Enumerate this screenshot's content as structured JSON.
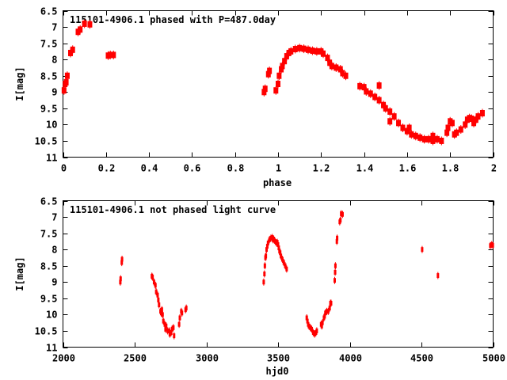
{
  "chart_data": [
    {
      "type": "scatter",
      "title": "115101-4906.1 phased with P=487.0day",
      "xlabel": "phase",
      "ylabel": "I[mag]",
      "xlim": [
        0,
        2
      ],
      "ylim": [
        11,
        6.5
      ],
      "y_inverted": true,
      "xticks": [
        "0",
        "0.2",
        "0.4",
        "0.6",
        "0.8",
        "1",
        "1.2",
        "1.4",
        "1.6",
        "1.8",
        "2"
      ],
      "xtick_values": [
        0,
        0.2,
        0.4,
        0.6,
        0.8,
        1,
        1.2,
        1.4,
        1.6,
        1.8,
        2
      ],
      "yticks": [
        "6.5",
        "7",
        "7.5",
        "8",
        "8.5",
        "9",
        "9.5",
        "10",
        "10.5",
        "11"
      ],
      "ytick_values": [
        6.5,
        7,
        7.5,
        8,
        8.5,
        9,
        9.5,
        10,
        10.5,
        11
      ],
      "grid": false,
      "marker_color": "#ff0000",
      "points": [
        [
          0.005,
          8.95
        ],
        [
          0.01,
          8.75
        ],
        [
          0.015,
          8.7
        ],
        [
          0.02,
          8.5
        ],
        [
          0.035,
          7.8
        ],
        [
          0.045,
          7.7
        ],
        [
          0.07,
          7.15
        ],
        [
          0.08,
          7.08
        ],
        [
          0.1,
          6.9
        ],
        [
          0.125,
          6.92
        ],
        [
          0.21,
          7.88
        ],
        [
          0.22,
          7.86
        ],
        [
          0.235,
          7.86
        ],
        [
          0.935,
          9.0
        ],
        [
          0.94,
          8.9
        ],
        [
          0.955,
          8.45
        ],
        [
          0.96,
          8.35
        ],
        [
          0.99,
          8.95
        ],
        [
          1.0,
          8.75
        ],
        [
          1.005,
          8.5
        ],
        [
          1.015,
          8.3
        ],
        [
          1.02,
          8.2
        ],
        [
          1.03,
          8.05
        ],
        [
          1.04,
          7.9
        ],
        [
          1.05,
          7.8
        ],
        [
          1.06,
          7.75
        ],
        [
          1.08,
          7.68
        ],
        [
          1.1,
          7.65
        ],
        [
          1.12,
          7.67
        ],
        [
          1.14,
          7.7
        ],
        [
          1.16,
          7.73
        ],
        [
          1.18,
          7.75
        ],
        [
          1.2,
          7.75
        ],
        [
          1.21,
          7.82
        ],
        [
          1.23,
          7.95
        ],
        [
          1.24,
          8.1
        ],
        [
          1.25,
          8.2
        ],
        [
          1.27,
          8.25
        ],
        [
          1.29,
          8.3
        ],
        [
          1.3,
          8.42
        ],
        [
          1.315,
          8.5
        ],
        [
          1.38,
          8.82
        ],
        [
          1.4,
          8.85
        ],
        [
          1.41,
          8.98
        ],
        [
          1.43,
          9.05
        ],
        [
          1.45,
          9.15
        ],
        [
          1.47,
          9.25
        ],
        [
          1.47,
          8.8
        ],
        [
          1.49,
          9.4
        ],
        [
          1.5,
          9.5
        ],
        [
          1.52,
          9.6
        ],
        [
          1.52,
          9.9
        ],
        [
          1.54,
          9.75
        ],
        [
          1.56,
          9.95
        ],
        [
          1.58,
          10.1
        ],
        [
          1.6,
          10.2
        ],
        [
          1.61,
          10.1
        ],
        [
          1.62,
          10.3
        ],
        [
          1.64,
          10.35
        ],
        [
          1.66,
          10.4
        ],
        [
          1.68,
          10.45
        ],
        [
          1.7,
          10.45
        ],
        [
          1.72,
          10.5
        ],
        [
          1.72,
          10.35
        ],
        [
          1.74,
          10.45
        ],
        [
          1.76,
          10.5
        ],
        [
          1.785,
          10.25
        ],
        [
          1.79,
          10.1
        ],
        [
          1.8,
          9.9
        ],
        [
          1.81,
          9.95
        ],
        [
          1.82,
          10.3
        ],
        [
          1.83,
          10.25
        ],
        [
          1.85,
          10.15
        ],
        [
          1.87,
          10.0
        ],
        [
          1.88,
          9.85
        ],
        [
          1.89,
          9.8
        ],
        [
          1.9,
          9.82
        ],
        [
          1.91,
          9.95
        ],
        [
          1.92,
          9.85
        ],
        [
          1.93,
          9.75
        ],
        [
          1.95,
          9.65
        ]
      ]
    },
    {
      "type": "scatter",
      "title": "115101-4906.1 not phased light curve",
      "xlabel": "hjd0",
      "ylabel": "I[mag]",
      "xlim": [
        2000,
        5000
      ],
      "ylim": [
        11,
        6.5
      ],
      "y_inverted": true,
      "xticks": [
        "2000",
        "2500",
        "3000",
        "3500",
        "4000",
        "4500",
        "5000"
      ],
      "xtick_values": [
        2000,
        2500,
        3000,
        3500,
        4000,
        4500,
        5000
      ],
      "yticks": [
        "6.5",
        "7",
        "7.5",
        "8",
        "8.5",
        "9",
        "9.5",
        "10",
        "10.5",
        "11"
      ],
      "ytick_values": [
        6.5,
        7,
        7.5,
        8,
        8.5,
        9,
        9.5,
        10,
        10.5,
        11
      ],
      "grid": false,
      "marker_color": "#ff0000",
      "points": [
        [
          2400,
          9.0
        ],
        [
          2402,
          8.9
        ],
        [
          2410,
          8.4
        ],
        [
          2412,
          8.3
        ],
        [
          2620,
          8.82
        ],
        [
          2625,
          8.85
        ],
        [
          2635,
          9.0
        ],
        [
          2645,
          9.1
        ],
        [
          2650,
          9.3
        ],
        [
          2660,
          9.4
        ],
        [
          2665,
          9.55
        ],
        [
          2670,
          9.7
        ],
        [
          2680,
          9.9
        ],
        [
          2685,
          9.95
        ],
        [
          2690,
          9.85
        ],
        [
          2695,
          10.0
        ],
        [
          2700,
          10.2
        ],
        [
          2710,
          10.3
        ],
        [
          2715,
          10.45
        ],
        [
          2720,
          10.35
        ],
        [
          2730,
          10.5
        ],
        [
          2740,
          10.5
        ],
        [
          2745,
          10.6
        ],
        [
          2755,
          10.55
        ],
        [
          2760,
          10.45
        ],
        [
          2770,
          10.4
        ],
        [
          2775,
          10.65
        ],
        [
          2810,
          10.3
        ],
        [
          2815,
          10.1
        ],
        [
          2825,
          9.9
        ],
        [
          2830,
          9.95
        ],
        [
          2855,
          9.85
        ],
        [
          2860,
          9.8
        ],
        [
          3400,
          9.0
        ],
        [
          3405,
          8.75
        ],
        [
          3408,
          8.5
        ],
        [
          3412,
          8.25
        ],
        [
          3415,
          8.2
        ],
        [
          3420,
          8.0
        ],
        [
          3425,
          7.9
        ],
        [
          3430,
          7.8
        ],
        [
          3440,
          7.7
        ],
        [
          3450,
          7.65
        ],
        [
          3460,
          7.63
        ],
        [
          3465,
          7.7
        ],
        [
          3470,
          7.68
        ],
        [
          3480,
          7.75
        ],
        [
          3490,
          7.8
        ],
        [
          3495,
          7.78
        ],
        [
          3500,
          7.85
        ],
        [
          3505,
          7.95
        ],
        [
          3510,
          8.05
        ],
        [
          3515,
          8.1
        ],
        [
          3520,
          8.2
        ],
        [
          3530,
          8.3
        ],
        [
          3540,
          8.4
        ],
        [
          3550,
          8.5
        ],
        [
          3560,
          8.6
        ],
        [
          3700,
          10.1
        ],
        [
          3705,
          10.2
        ],
        [
          3710,
          10.3
        ],
        [
          3715,
          10.35
        ],
        [
          3725,
          10.4
        ],
        [
          3735,
          10.45
        ],
        [
          3745,
          10.55
        ],
        [
          3755,
          10.6
        ],
        [
          3765,
          10.55
        ],
        [
          3770,
          10.5
        ],
        [
          3800,
          10.3
        ],
        [
          3805,
          10.35
        ],
        [
          3810,
          10.25
        ],
        [
          3820,
          10.1
        ],
        [
          3825,
          10.05
        ],
        [
          3830,
          9.95
        ],
        [
          3840,
          9.9
        ],
        [
          3850,
          9.9
        ],
        [
          3860,
          9.8
        ],
        [
          3865,
          9.65
        ],
        [
          3870,
          9.65
        ],
        [
          3895,
          8.95
        ],
        [
          3898,
          8.7
        ],
        [
          3900,
          8.5
        ],
        [
          3910,
          7.75
        ],
        [
          3912,
          7.65
        ],
        [
          3930,
          7.15
        ],
        [
          3935,
          7.1
        ],
        [
          3940,
          6.9
        ],
        [
          3950,
          6.92
        ],
        [
          4505,
          8.0
        ],
        [
          4615,
          8.8
        ],
        [
          4980,
          7.88
        ],
        [
          4990,
          7.85
        ],
        [
          4998,
          7.87
        ]
      ]
    }
  ]
}
